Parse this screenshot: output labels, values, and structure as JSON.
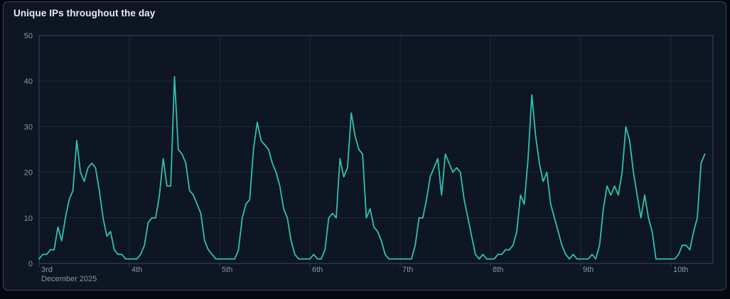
{
  "panel": {
    "title": "Unique IPs throughout the day"
  },
  "colors": {
    "page_background": "#05080f",
    "panel_background": "#0e1523",
    "panel_border": "#3b4763",
    "grid": "#1f2939",
    "frame": "#2b354c",
    "axis_label": "#8d95a5",
    "title_text": "#e8ecf2",
    "line": "#2dc2b1"
  },
  "chart_data": {
    "type": "line",
    "title": "Unique IPs throughout the day",
    "xlabel": "",
    "ylabel": "",
    "ylim": [
      0,
      50
    ],
    "y_ticks": [
      0,
      10,
      20,
      30,
      40,
      50
    ],
    "grid": true,
    "legend": false,
    "x_axis": {
      "tick_labels": [
        "3rd",
        "4th",
        "5th",
        "6th",
        "7th",
        "8th",
        "9th",
        "10th"
      ],
      "first_tick_sublabel": "December 2025",
      "tick_interval_hours": 24
    },
    "series": [
      {
        "name": "Unique IPs",
        "color": "#2dc2b1",
        "x_start_hour": 0,
        "interval_hours": 1,
        "values": [
          1,
          2,
          2,
          3,
          3,
          8,
          5,
          10,
          14,
          16,
          27,
          20,
          18,
          21,
          22,
          21,
          16,
          10,
          6,
          7,
          3,
          2,
          2,
          1,
          1,
          1,
          1,
          2,
          4,
          9,
          10,
          10,
          15,
          23,
          17,
          17,
          41,
          25,
          24,
          22,
          16,
          15,
          13,
          11,
          5,
          3,
          2,
          1,
          1,
          1,
          1,
          1,
          1,
          3,
          10,
          13,
          14,
          25,
          31,
          27,
          26,
          25,
          22,
          20,
          17,
          12,
          10,
          5,
          2,
          1,
          1,
          1,
          1,
          2,
          1,
          1,
          3,
          10,
          11,
          10,
          23,
          19,
          21,
          33,
          28,
          25,
          24,
          10,
          12,
          8,
          7,
          5,
          2,
          1,
          1,
          1,
          1,
          1,
          1,
          1,
          4,
          10,
          10,
          14,
          19,
          21,
          23,
          15,
          24,
          22,
          20,
          21,
          20,
          14,
          10,
          6,
          2,
          1,
          2,
          1,
          1,
          1,
          2,
          2,
          3,
          3,
          4,
          7,
          15,
          13,
          23,
          37,
          28,
          22,
          18,
          20,
          13,
          10,
          7,
          4,
          2,
          1,
          2,
          1,
          1,
          1,
          1,
          2,
          1,
          4,
          12,
          17,
          15,
          17,
          15,
          20,
          30,
          27,
          20,
          15,
          10,
          15,
          10,
          7,
          1,
          1,
          1,
          1,
          1,
          1,
          2,
          4,
          4,
          3,
          7,
          10,
          22,
          24
        ]
      }
    ]
  }
}
